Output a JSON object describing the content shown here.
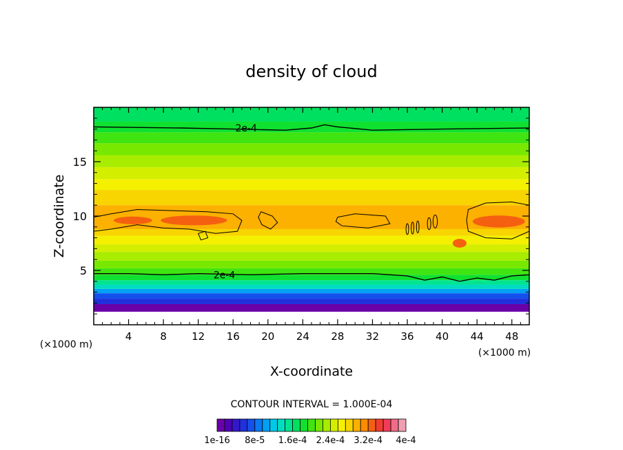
{
  "chart_data": {
    "type": "heatmap",
    "title": "density of cloud",
    "xlabel": "X-coordinate",
    "ylabel": "Z-coordinate",
    "x_unit_left": "(×1000 m)",
    "x_unit_right": "(×1000 m)",
    "xlim": [
      0,
      50
    ],
    "ylim": [
      0,
      20
    ],
    "x_ticks": [
      4,
      8,
      12,
      16,
      20,
      24,
      28,
      32,
      36,
      40,
      44,
      48
    ],
    "y_ticks": [
      5,
      10,
      15
    ],
    "contour_interval_text": "CONTOUR INTERVAL = 1.000E-04",
    "contour_labels": [
      {
        "text": "2e-4",
        "x": 17.5,
        "z": 18.1
      },
      {
        "text": "2e-4",
        "x": 15.0,
        "z": 4.6
      }
    ],
    "colorbar": {
      "tick_labels": [
        "1e-16",
        "8e-5",
        "1.6e-4",
        "2.4e-4",
        "3.2e-4",
        "4e-4"
      ],
      "colors": [
        "#6a00a8",
        "#5000b4",
        "#3418c8",
        "#2030dc",
        "#1450ec",
        "#0a78f4",
        "#00a0f4",
        "#00c8e8",
        "#00dcc0",
        "#00e490",
        "#00e060",
        "#10e030",
        "#40e410",
        "#78e800",
        "#a8ec00",
        "#d4ee00",
        "#f4f000",
        "#f8d400",
        "#fcb000",
        "#fc8c00",
        "#f46010",
        "#f03c30",
        "#f03c58",
        "#f06c88",
        "#f0a0b0"
      ]
    },
    "bands": [
      {
        "z": 1.2,
        "color": "#ffffff"
      },
      {
        "z": 1.9,
        "color": "#6a00a8"
      },
      {
        "z": 2.4,
        "color": "#2030dc"
      },
      {
        "z": 2.9,
        "color": "#1450ec"
      },
      {
        "z": 3.3,
        "color": "#00a0f4"
      },
      {
        "z": 3.7,
        "color": "#00dcc0"
      },
      {
        "z": 4.1,
        "color": "#00e490"
      },
      {
        "z": 4.6,
        "color": "#10e030"
      },
      {
        "z": 5.2,
        "color": "#40e410"
      },
      {
        "z": 5.9,
        "color": "#78e800"
      },
      {
        "z": 6.7,
        "color": "#a8ec00"
      },
      {
        "z": 7.4,
        "color": "#d4ee00"
      },
      {
        "z": 8.2,
        "color": "#f4f000"
      },
      {
        "z": 8.8,
        "color": "#f8d400"
      },
      {
        "z": 11.0,
        "color": "#fcb000"
      },
      {
        "z": 12.4,
        "color": "#f8d400"
      },
      {
        "z": 13.4,
        "color": "#f4f000"
      },
      {
        "z": 14.5,
        "color": "#d4ee00"
      },
      {
        "z": 15.6,
        "color": "#a8ec00"
      },
      {
        "z": 16.7,
        "color": "#78e800"
      },
      {
        "z": 17.7,
        "color": "#40e410"
      },
      {
        "z": 18.7,
        "color": "#10e030"
      },
      {
        "z": 20.0,
        "color": "#00e060"
      }
    ],
    "patches": [
      {
        "x": 4.5,
        "z": 9.6,
        "rx": 2.2,
        "rz": 0.35,
        "color": "#f46010"
      },
      {
        "x": 11.5,
        "z": 9.6,
        "rx": 3.8,
        "rz": 0.45,
        "color": "#f46010"
      },
      {
        "x": 46.5,
        "z": 9.5,
        "rx": 3.0,
        "rz": 0.55,
        "color": "#f46010"
      },
      {
        "x": 42.0,
        "z": 7.5,
        "rx": 0.8,
        "rz": 0.4,
        "color": "#f46010"
      }
    ],
    "contours_lines": [
      {
        "name": "upper-2e-4",
        "points": [
          [
            0,
            18.2
          ],
          [
            10,
            18.1
          ],
          [
            16,
            18.0
          ],
          [
            22,
            17.9
          ],
          [
            25,
            18.1
          ],
          [
            26.5,
            18.4
          ],
          [
            28,
            18.2
          ],
          [
            32,
            17.9
          ],
          [
            40,
            18.0
          ],
          [
            50,
            18.1
          ]
        ]
      },
      {
        "name": "lower-2e-4",
        "points": [
          [
            0,
            4.7
          ],
          [
            4,
            4.7
          ],
          [
            8,
            4.6
          ],
          [
            12,
            4.7
          ],
          [
            18,
            4.6
          ],
          [
            24,
            4.7
          ],
          [
            32,
            4.7
          ],
          [
            36,
            4.5
          ],
          [
            38,
            4.1
          ],
          [
            40,
            4.4
          ],
          [
            42,
            4.0
          ],
          [
            44,
            4.3
          ],
          [
            46,
            4.1
          ],
          [
            48,
            4.5
          ],
          [
            50,
            4.6
          ]
        ]
      },
      {
        "name": "closed-left",
        "closed": true,
        "points": [
          [
            0,
            9.9
          ],
          [
            2,
            10.2
          ],
          [
            5,
            10.6
          ],
          [
            9,
            10.5
          ],
          [
            13,
            10.4
          ],
          [
            16,
            10.2
          ],
          [
            17,
            9.6
          ],
          [
            16.5,
            8.6
          ],
          [
            14,
            8.4
          ],
          [
            11,
            8.8
          ],
          [
            8,
            8.9
          ],
          [
            5,
            9.2
          ],
          [
            2,
            8.8
          ],
          [
            0,
            8.6
          ]
        ]
      },
      {
        "name": "closed-mid",
        "closed": true,
        "points": [
          [
            19.2,
            10.4
          ],
          [
            20.5,
            10.0
          ],
          [
            21.1,
            9.4
          ],
          [
            20.3,
            8.8
          ],
          [
            19.3,
            9.2
          ],
          [
            18.9,
            9.9
          ]
        ]
      },
      {
        "name": "closed-right",
        "closed": true,
        "points": [
          [
            28,
            9.9
          ],
          [
            30,
            10.2
          ],
          [
            33.5,
            10.0
          ],
          [
            34,
            9.3
          ],
          [
            31.5,
            8.9
          ],
          [
            28.5,
            9.1
          ],
          [
            27.8,
            9.5
          ]
        ]
      },
      {
        "name": "closed-far-right",
        "closed": true,
        "points": [
          [
            43,
            10.6
          ],
          [
            45,
            11.2
          ],
          [
            48,
            11.3
          ],
          [
            50,
            11.0
          ],
          [
            50,
            8.6
          ],
          [
            48,
            7.9
          ],
          [
            45,
            8.0
          ],
          [
            43,
            8.6
          ],
          [
            42.8,
            9.6
          ]
        ]
      },
      {
        "name": "closed-small",
        "closed": true,
        "points": [
          [
            12,
            8.4
          ],
          [
            12.8,
            8.6
          ],
          [
            13.1,
            8.0
          ],
          [
            12.3,
            7.8
          ]
        ]
      }
    ],
    "small_ovals": [
      {
        "x": 36.0,
        "z": 8.8,
        "rx": 0.15,
        "rz": 0.5
      },
      {
        "x": 36.6,
        "z": 8.9,
        "rx": 0.15,
        "rz": 0.55
      },
      {
        "x": 37.2,
        "z": 9.0,
        "rx": 0.15,
        "rz": 0.55
      },
      {
        "x": 38.5,
        "z": 9.3,
        "rx": 0.2,
        "rz": 0.55
      },
      {
        "x": 39.2,
        "z": 9.5,
        "rx": 0.25,
        "rz": 0.6
      }
    ]
  }
}
